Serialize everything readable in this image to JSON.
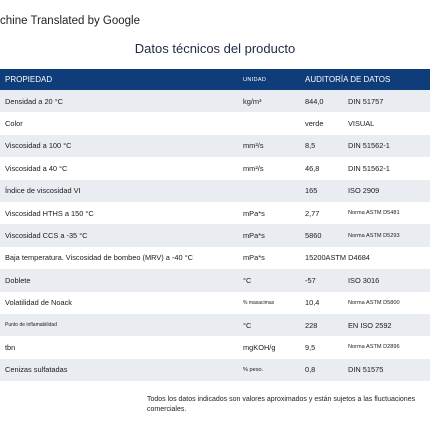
{
  "banner": "chine Translated by Google",
  "title": "Datos técnicos del producto",
  "header": {
    "propiedad": "PROPIEDAD",
    "unidad": "UNIDAD",
    "auditoria": "AUDITORÍA DE DATOS"
  },
  "rows": [
    {
      "prop": "Densidad a 20 °C",
      "unit": "kg/m³",
      "value": "844,0",
      "method": "DIN 51757"
    },
    {
      "prop": "Color",
      "unit": "",
      "value": "verde",
      "method": "VISUAL"
    },
    {
      "prop": "Viscosidad a 100 °C",
      "unit": "mm²/s",
      "value": "8,5",
      "method": "DIN 51562-1"
    },
    {
      "prop": "Viscosidad a 40 °C",
      "unit": "mm²/s",
      "value": "46,8",
      "method": "DIN 51562-1"
    },
    {
      "prop": "Índice de viscosidad VI",
      "unit": "",
      "value": "165",
      "method": "ISO 2909"
    },
    {
      "prop": "Viscosidad HTHS a 150 °C",
      "unit": "mPa*s",
      "value": "2,77",
      "method": "Norma ASTM D5481"
    },
    {
      "prop": "Viscosidad CCS a -35 °C",
      "unit": "mPa*s",
      "value": "5860",
      "method": "Norma ASTM D5293"
    },
    {
      "prop": "Baja temperatura. Viscosidad de bombeo (MRV) a -40 °C",
      "unit": "mPa*s",
      "value": "15200ASTM D4684",
      "method": ""
    },
    {
      "prop": "Doblete",
      "unit": "°C",
      "value": "-57",
      "method": "ISO 3016"
    },
    {
      "prop": "Volatilidad de Noack",
      "unit": "% masacimas",
      "value": "10,4",
      "method": "Norma ASTM D5800"
    },
    {
      "prop": "Punto de inflamabilidad",
      "unit": "°C",
      "value": "228",
      "method": "EN ISO 2592"
    },
    {
      "prop": "tbn",
      "unit": "mgKOH/g",
      "value": "9,5",
      "method": "Norma ASTM D2896"
    },
    {
      "prop": "Cenizas sulfatadas",
      "unit": "% peso.",
      "value": "0,8",
      "method": "DIN 51575"
    }
  ],
  "footnote": "Todos los datos indicados son valores aproximados y están sujetos a las fluctuaciones comerciales."
}
